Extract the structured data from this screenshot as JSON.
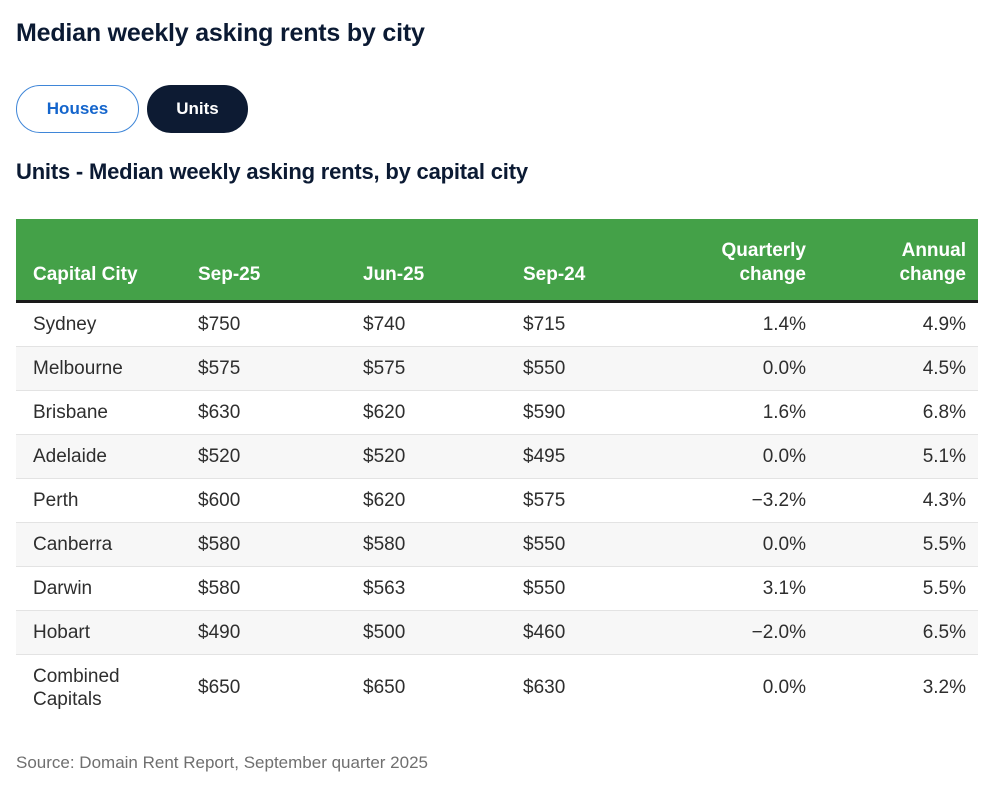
{
  "page": {
    "title": "Median weekly asking rents by city",
    "section_title": "Units - Median weekly asking rents, by capital city",
    "source": "Source: Domain Rent Report, September quarter 2025"
  },
  "toggle": {
    "houses_label": "Houses",
    "units_label": "Units",
    "selected": "Units"
  },
  "colors": {
    "header_green": "#44a148",
    "title_navy": "#0b1a33",
    "units_button_bg": "#0d1b33",
    "houses_button_text": "#1465cc",
    "houses_button_border": "#3f86d8",
    "row_stripe": "#f7f7f7",
    "row_border": "#e3e3e3",
    "header_underline": "#1a1a1a",
    "source_text": "#6f6f6f"
  },
  "chart_data": {
    "type": "table",
    "title": "Units - Median weekly asking rents, by capital city",
    "columns": [
      "Capital City",
      "Sep-25",
      "Jun-25",
      "Sep-24",
      "Quarterly change",
      "Annual change"
    ],
    "rows": [
      [
        "Sydney",
        "$750",
        "$740",
        "$715",
        "1.4%",
        "4.9%"
      ],
      [
        "Melbourne",
        "$575",
        "$575",
        "$550",
        "0.0%",
        "4.5%"
      ],
      [
        "Brisbane",
        "$630",
        "$620",
        "$590",
        "1.6%",
        "6.8%"
      ],
      [
        "Adelaide",
        "$520",
        "$520",
        "$495",
        "0.0%",
        "5.1%"
      ],
      [
        "Perth",
        "$600",
        "$620",
        "$575",
        "−3.2%",
        "4.3%"
      ],
      [
        "Canberra",
        "$580",
        "$580",
        "$550",
        "0.0%",
        "5.5%"
      ],
      [
        "Darwin",
        "$580",
        "$563",
        "$550",
        "3.1%",
        "5.5%"
      ],
      [
        "Hobart",
        "$490",
        "$500",
        "$460",
        "−2.0%",
        "6.5%"
      ],
      [
        "Combined Capitals",
        "$650",
        "$650",
        "$630",
        "0.0%",
        "3.2%"
      ]
    ]
  }
}
